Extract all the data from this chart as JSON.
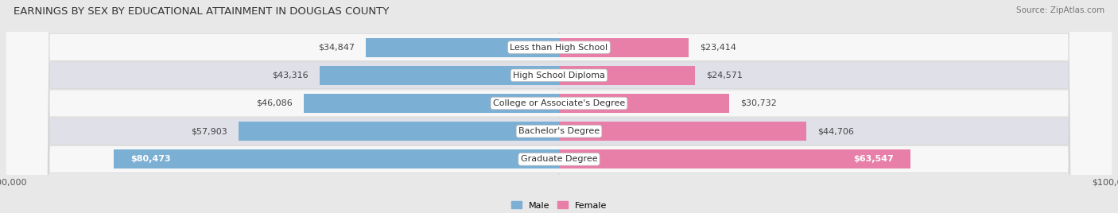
{
  "title": "EARNINGS BY SEX BY EDUCATIONAL ATTAINMENT IN DOUGLAS COUNTY",
  "source": "Source: ZipAtlas.com",
  "categories": [
    "Graduate Degree",
    "Bachelor's Degree",
    "College or Associate's Degree",
    "High School Diploma",
    "Less than High School"
  ],
  "male_values": [
    80473,
    57903,
    46086,
    43316,
    34847
  ],
  "female_values": [
    63547,
    44706,
    30732,
    24571,
    23414
  ],
  "male_color": "#7bafd4",
  "female_color": "#e87fa8",
  "bar_height": 0.68,
  "xlim": 100000,
  "bg_color": "#e8e8e8",
  "row_bg_light": "#f7f7f7",
  "row_bg_dark": "#e0e0e8",
  "title_fontsize": 9.5,
  "label_fontsize": 8.0,
  "source_fontsize": 7.5,
  "value_inside_threshold": 70000,
  "female_inside_threshold": 58000
}
